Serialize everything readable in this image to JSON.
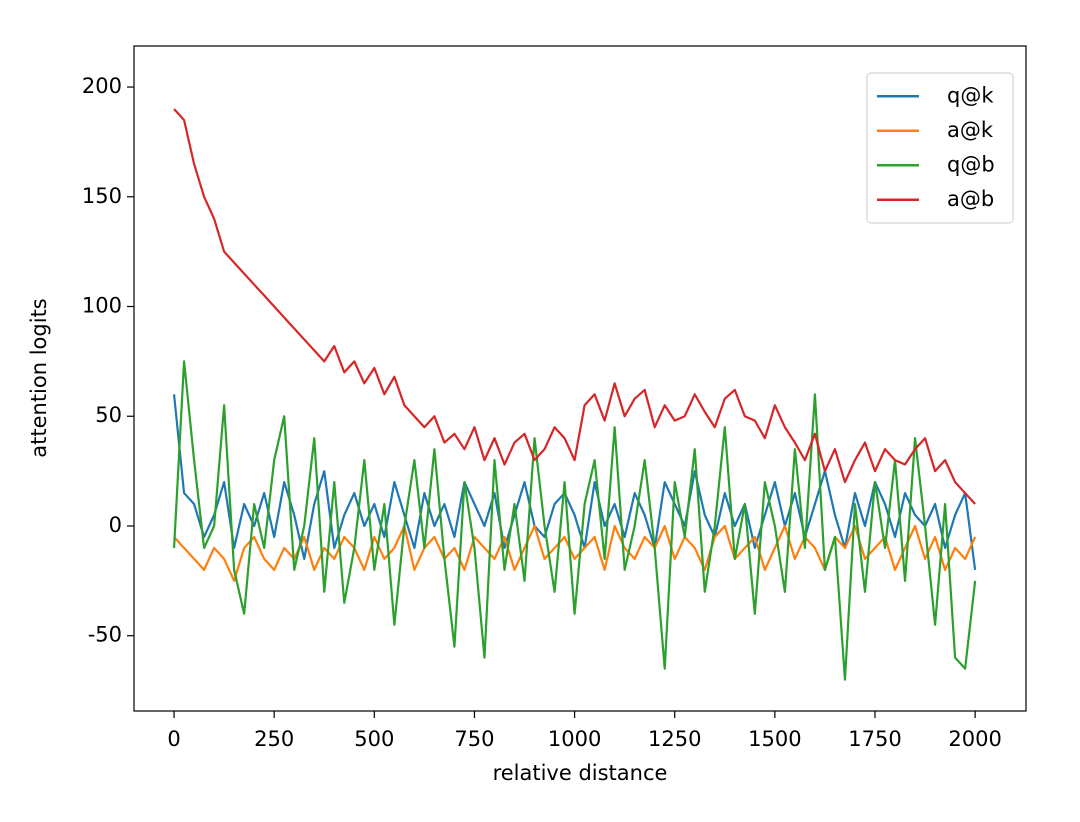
{
  "chart_data": {
    "type": "line",
    "xlabel": "relative distance",
    "ylabel": "attention logits",
    "x": [
      0,
      25,
      50,
      75,
      100,
      125,
      150,
      175,
      200,
      225,
      250,
      275,
      300,
      325,
      350,
      375,
      400,
      425,
      450,
      475,
      500,
      525,
      550,
      575,
      600,
      625,
      650,
      675,
      700,
      725,
      750,
      775,
      800,
      825,
      850,
      875,
      900,
      925,
      950,
      975,
      1000,
      1025,
      1050,
      1075,
      1100,
      1125,
      1150,
      1175,
      1200,
      1225,
      1250,
      1275,
      1300,
      1325,
      1350,
      1375,
      1400,
      1425,
      1450,
      1475,
      1500,
      1525,
      1550,
      1575,
      1600,
      1625,
      1650,
      1675,
      1700,
      1725,
      1750,
      1775,
      1800,
      1825,
      1850,
      1875,
      1900,
      1925,
      1950,
      1975,
      2000
    ],
    "series": [
      {
        "name": "q@k",
        "color": "#1f77b4",
        "values": [
          60,
          15,
          10,
          -5,
          5,
          20,
          -10,
          10,
          0,
          15,
          -5,
          20,
          5,
          -15,
          10,
          25,
          -10,
          5,
          15,
          0,
          10,
          -5,
          20,
          5,
          -10,
          15,
          0,
          10,
          -5,
          20,
          10,
          0,
          15,
          -10,
          5,
          20,
          0,
          -5,
          10,
          15,
          5,
          -10,
          20,
          0,
          10,
          -5,
          15,
          5,
          -10,
          20,
          10,
          0,
          25,
          5,
          -5,
          15,
          0,
          10,
          -10,
          5,
          20,
          0,
          15,
          -5,
          10,
          25,
          5,
          -10,
          15,
          0,
          20,
          10,
          -5,
          15,
          5,
          0,
          10,
          -10,
          5,
          15,
          -20
        ]
      },
      {
        "name": "a@k",
        "color": "#ff7f0e",
        "values": [
          -5,
          -10,
          -15,
          -20,
          -10,
          -15,
          -25,
          -10,
          -5,
          -15,
          -20,
          -10,
          -15,
          -5,
          -20,
          -10,
          -15,
          -5,
          -10,
          -20,
          -5,
          -15,
          -10,
          0,
          -20,
          -10,
          -5,
          -15,
          -10,
          -20,
          -5,
          -10,
          -15,
          -5,
          -20,
          -10,
          0,
          -15,
          -10,
          -5,
          -15,
          -10,
          -5,
          -20,
          0,
          -10,
          -15,
          -5,
          -10,
          0,
          -15,
          -5,
          -10,
          -20,
          -5,
          0,
          -15,
          -10,
          -5,
          -20,
          -10,
          0,
          -15,
          -5,
          -10,
          -20,
          -5,
          -10,
          0,
          -15,
          -10,
          -5,
          -20,
          -10,
          0,
          -15,
          -5,
          -20,
          -10,
          -15,
          -5
        ]
      },
      {
        "name": "q@b",
        "color": "#2ca02c",
        "values": [
          -10,
          75,
          30,
          -10,
          0,
          55,
          -20,
          -40,
          10,
          -10,
          30,
          50,
          -20,
          0,
          40,
          -30,
          20,
          -35,
          -10,
          30,
          -20,
          10,
          -45,
          0,
          30,
          -10,
          35,
          -15,
          -55,
          20,
          -10,
          -60,
          30,
          -20,
          10,
          -25,
          40,
          0,
          -30,
          20,
          -40,
          10,
          30,
          -15,
          45,
          -20,
          0,
          30,
          -10,
          -65,
          20,
          -5,
          35,
          -30,
          0,
          45,
          -15,
          10,
          -40,
          20,
          0,
          -30,
          35,
          -10,
          60,
          -20,
          -5,
          -70,
          10,
          -30,
          20,
          -10,
          30,
          -25,
          40,
          0,
          -45,
          10,
          -60,
          -65,
          -25
        ]
      },
      {
        "name": "a@b",
        "color": "#d62728",
        "values": [
          190,
          185,
          165,
          150,
          140,
          125,
          120,
          115,
          110,
          105,
          100,
          95,
          90,
          85,
          80,
          75,
          82,
          70,
          75,
          65,
          72,
          60,
          68,
          55,
          50,
          45,
          50,
          38,
          42,
          35,
          45,
          30,
          40,
          28,
          38,
          42,
          30,
          35,
          45,
          40,
          30,
          55,
          60,
          48,
          65,
          50,
          58,
          62,
          45,
          55,
          48,
          50,
          60,
          52,
          45,
          58,
          62,
          50,
          48,
          40,
          55,
          45,
          38,
          30,
          42,
          25,
          35,
          20,
          30,
          38,
          25,
          35,
          30,
          28,
          35,
          40,
          25,
          30,
          20,
          15,
          10
        ]
      }
    ],
    "xlim": [
      -100,
      2127
    ],
    "ylim": [
      -84.3,
      218.7
    ],
    "xticks": [
      0,
      250,
      500,
      750,
      1000,
      1250,
      1500,
      1750,
      2000
    ],
    "yticks": [
      -50,
      0,
      50,
      100,
      150,
      200
    ],
    "legend": "upper right"
  }
}
